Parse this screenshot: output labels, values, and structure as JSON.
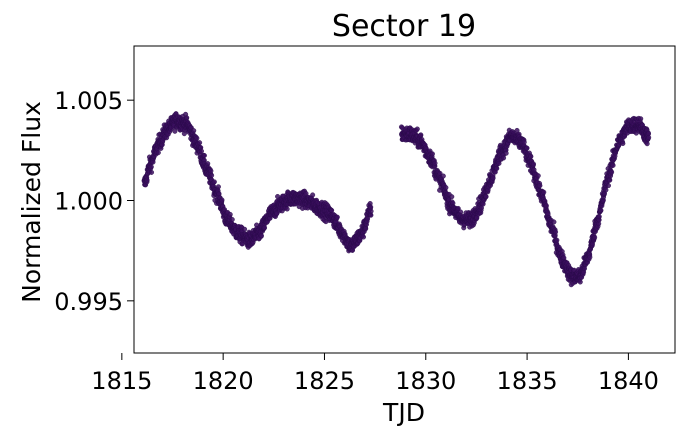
{
  "chart_data": {
    "type": "scatter",
    "title": "Sector 19",
    "xlabel": "TJD",
    "ylabel": "Normalized Flux",
    "xlim": [
      1815.6,
      1842.3
    ],
    "ylim": [
      0.9924,
      1.0077
    ],
    "x_ticks": [
      1815,
      1820,
      1825,
      1830,
      1835,
      1840
    ],
    "y_ticks": [
      0.995,
      1.0,
      1.005
    ],
    "x_tick_labels": [
      "1815",
      "1820",
      "1825",
      "1830",
      "1835",
      "1840"
    ],
    "y_tick_labels": [
      "0.995",
      "1.000",
      "1.005"
    ],
    "grid": false,
    "legend": "none",
    "marker_color": "#3b0f5e",
    "marker_edge_color": "#2a0a4a",
    "segments": [
      {
        "x": [
          1816.1,
          1816.4,
          1816.8,
          1817.2,
          1817.7,
          1818.2,
          1818.7,
          1819.2,
          1819.7,
          1820.2,
          1820.8,
          1821.3,
          1821.8,
          1822.3,
          1822.8,
          1823.3,
          1823.8,
          1824.3,
          1824.8,
          1825.3,
          1825.8,
          1826.3,
          1826.8,
          1827.3
        ],
        "y": [
          1.0008,
          1.0018,
          1.0028,
          1.0035,
          1.004,
          1.0038,
          1.0028,
          1.0015,
          1.0003,
          0.999,
          0.9983,
          0.998,
          0.9984,
          0.9993,
          0.9998,
          1.0001,
          1.0001,
          0.9999,
          0.9996,
          0.9993,
          0.9985,
          0.9977,
          0.9983,
          0.9996
        ]
      },
      {
        "x": [
          1828.8,
          1829.2,
          1829.7,
          1830.2,
          1830.7,
          1831.2,
          1831.7,
          1832.2,
          1832.7,
          1833.2,
          1833.7,
          1834.2,
          1834.7,
          1835.2,
          1835.7,
          1836.2,
          1836.7,
          1837.2,
          1837.6,
          1838.0,
          1838.5,
          1839.0,
          1839.5,
          1840.0,
          1840.5,
          1841.0
        ],
        "y": [
          1.0033,
          1.0033,
          1.003,
          1.0022,
          1.001,
          0.9998,
          0.9991,
          0.999,
          0.9998,
          1.0011,
          1.0024,
          1.0032,
          1.0029,
          1.0018,
          1.0003,
          0.9987,
          0.9971,
          0.9962,
          0.9962,
          0.9972,
          0.9991,
          1.0012,
          1.0029,
          1.0037,
          1.0038,
          1.0031
        ]
      }
    ]
  }
}
